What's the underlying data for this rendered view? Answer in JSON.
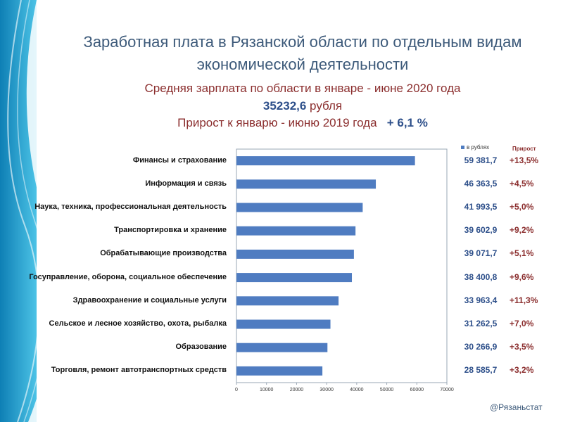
{
  "header": {
    "title": "Заработная плата в Рязанской области по отдельным видам экономической деятельности",
    "sub1": "Средняя зарплата по области  в январе - июне 2020 года",
    "sub2_value": "35232,6",
    "sub2_unit": " рубля",
    "sub3_text": "Прирост к  январю - июню 2019 года",
    "sub3_value": "+ 6,1 %"
  },
  "legend": {
    "series_label": "в рублях",
    "growth_header": "Прирост"
  },
  "credit": "@Рязаньстат",
  "colors": {
    "bar": "#4f7cc1",
    "value_text": "#2d4f8a",
    "growth_text": "#8b2e2e",
    "title": "#3d5a7a"
  },
  "chart_data": {
    "type": "bar",
    "orientation": "horizontal",
    "categories": [
      "Финансы и страхование",
      "Информация и связь",
      "Наука, техника, профессиональная деятельность",
      "Транспортировка и хранение",
      "Обрабатывающие производства",
      "Госуправление, оборона, социальное обеспечение",
      "Здравоохранение  и социальные услуги",
      "Сельское и лесное хозяйство, охота, рыбалка",
      "Образование",
      "Торговля, ремонт автотранспортных  средств"
    ],
    "values": [
      59381.7,
      46363.5,
      41993.5,
      39602.9,
      39071.7,
      38400.8,
      33963.4,
      31262.5,
      30266.9,
      28585.7
    ],
    "value_labels": [
      "59 381,7",
      "46 363,5",
      "41 993,5",
      "39 602,9",
      "39 071,7",
      "38 400,8",
      "33 963,4",
      "31 262,5",
      "30 266,9",
      "28 585,7"
    ],
    "growth_labels": [
      "+13,5%",
      "+4,5%",
      "+5,0%",
      "+9,2%",
      "+5,1%",
      "+9,6%",
      "+11,3%",
      "+7,0%",
      "+3,5%",
      "+3,2%"
    ],
    "series": [
      {
        "name": "в рублях"
      }
    ],
    "xlim": [
      0,
      70000
    ],
    "xticks": [
      "0",
      "10000",
      "20000",
      "30000",
      "40000",
      "50000",
      "60000",
      "70000"
    ],
    "legend_position": "top-right",
    "grid": false
  }
}
